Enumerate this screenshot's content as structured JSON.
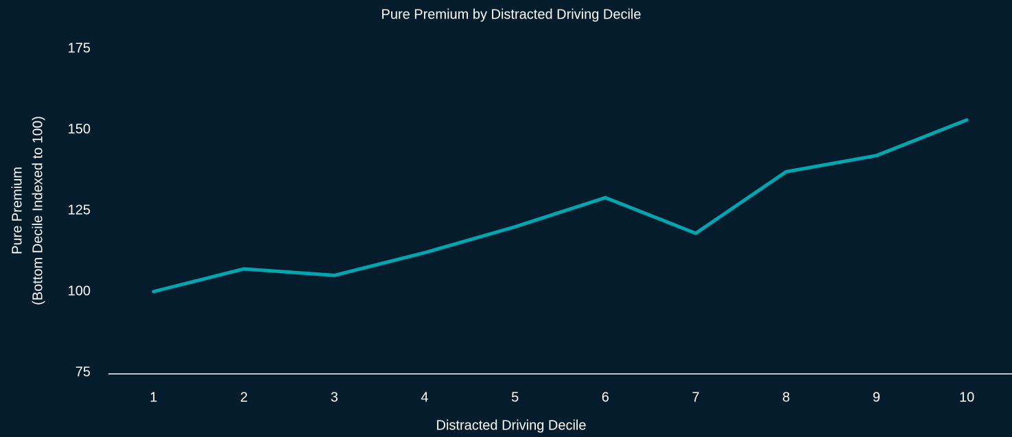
{
  "chart_data": {
    "type": "line",
    "title": "Pure Premium by Distracted Driving Decile",
    "xlabel": "Distracted Driving Decile",
    "ylabel": [
      "Pure Premium",
      "(Bottom Decile Indexed to 100)"
    ],
    "categories": [
      "1",
      "2",
      "3",
      "4",
      "5",
      "6",
      "7",
      "8",
      "9",
      "10"
    ],
    "series": [
      {
        "name": "Pure Premium",
        "color": "#00a6b0",
        "values": [
          100,
          107,
          105,
          112,
          120,
          129,
          118,
          137,
          142,
          153
        ]
      }
    ],
    "ylim": [
      75,
      175
    ],
    "yticks": [
      75,
      100,
      125,
      150,
      175
    ],
    "grid": false
  }
}
